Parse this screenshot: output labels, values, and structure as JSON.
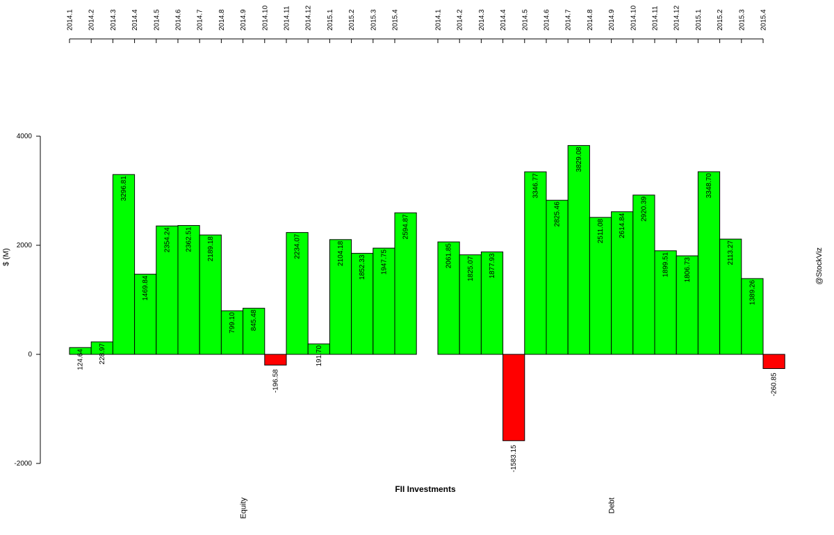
{
  "chart_data": {
    "type": "bar",
    "title": "FII Investments",
    "ylabel": "$ (M)",
    "watermark": "@StockViz",
    "ylim": [
      -2000,
      4000
    ],
    "yticks": [
      -2000,
      0,
      2000,
      4000
    ],
    "grid": false,
    "colors": {
      "positive": "#00ff00",
      "negative": "#ff0000",
      "border": "#000000"
    },
    "groups": [
      {
        "name": "Equity",
        "categories": [
          "2014.1",
          "2014.2",
          "2014.3",
          "2014.4",
          "2014.5",
          "2014.6",
          "2014.7",
          "2014.8",
          "2014.9",
          "2014.10",
          "2014.11",
          "2014.12",
          "2015.1",
          "2015.2",
          "2015.3",
          "2015.4"
        ],
        "values": [
          124.64,
          228.97,
          3296.81,
          1469.84,
          2354.24,
          2362.51,
          2189.18,
          799.1,
          845.48,
          -196.58,
          2234.07,
          191.7,
          2104.18,
          1852.33,
          1947.75,
          2594.87
        ],
        "labels": [
          "124.64",
          "228.97",
          "3296.81",
          "1469.84",
          "2354.24",
          "2362.51",
          "2189.18",
          "799.10",
          "845.48",
          "-196.58",
          "2234.07",
          "191.70",
          "2104.18",
          "1852.33",
          "1947.75",
          "2594.87"
        ]
      },
      {
        "name": "Debt",
        "categories": [
          "2014.1",
          "2014.2",
          "2014.3",
          "2014.4",
          "2014.5",
          "2014.6",
          "2014.7",
          "2014.8",
          "2014.9",
          "2014.10",
          "2014.11",
          "2014.12",
          "2015.1",
          "2015.2",
          "2015.3",
          "2015.4"
        ],
        "values": [
          2061.85,
          1825.07,
          1877.93,
          -1583.15,
          3346.77,
          2825.46,
          3829.08,
          2511.08,
          2614.84,
          2920.39,
          1899.51,
          1806.73,
          3348.7,
          2113.27,
          1389.26,
          -260.85
        ],
        "labels": [
          "2061.85",
          "1825.07",
          "1877.93",
          "-1583.15",
          "3346.77",
          "2825.46",
          "3829.08",
          "2511.08",
          "2614.84",
          "2920.39",
          "1899.51",
          "1806.73",
          "3348.70",
          "2113.27",
          "1389.26",
          "-260.85"
        ]
      }
    ]
  }
}
